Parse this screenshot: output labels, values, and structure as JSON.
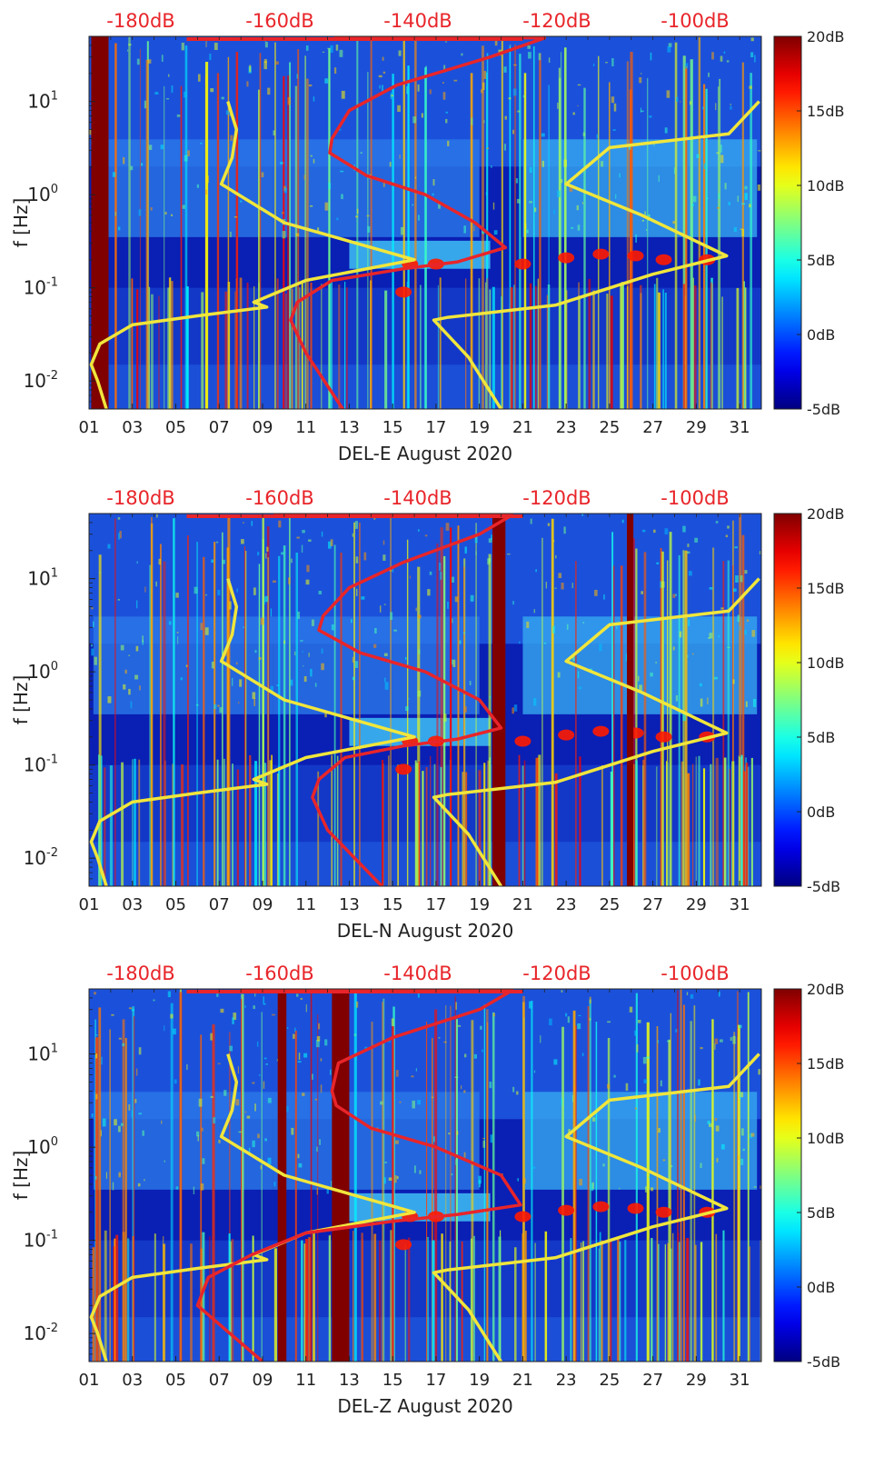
{
  "chart_data": [
    {
      "type": "heatmap",
      "xlabel": "DEL-E August 2020",
      "ylabel": "f [Hz]",
      "x_ticks": [
        "01",
        "03",
        "05",
        "07",
        "09",
        "11",
        "13",
        "15",
        "17",
        "19",
        "21",
        "23",
        "25",
        "27",
        "29",
        "31"
      ],
      "x_range_day": [
        1,
        32
      ],
      "y_scale": "log",
      "y_range_hz": [
        0.005,
        50
      ],
      "y_ticks": [
        {
          "base": "10",
          "exp": "1",
          "value": 10
        },
        {
          "base": "10",
          "exp": "0",
          "value": 1
        },
        {
          "base": "10",
          "exp": "-1",
          "value": 0.1
        },
        {
          "base": "10",
          "exp": "-2",
          "value": 0.01
        }
      ],
      "top_axis_ticks": [
        "-180dB",
        "-160dB",
        "-140dB",
        "-120dB",
        "-100dB"
      ],
      "colorbar": {
        "ticks": [
          "20dB",
          "15dB",
          "10dB",
          "5dB",
          "0dB",
          "-5dB"
        ],
        "range_db": [
          -5,
          20
        ],
        "colormap": "jet"
      },
      "saturated_bands_day": [
        [
          1.1,
          1.9
        ]
      ],
      "series": [
        {
          "color": "#f0e63c",
          "points": [
            [
              7.4,
              10
            ],
            [
              7.8,
              5
            ],
            [
              7.6,
              2.5
            ],
            [
              7.1,
              1.3
            ],
            [
              10,
              0.5
            ],
            [
              16,
              0.2
            ],
            [
              11,
              0.12
            ],
            [
              8.6,
              0.07
            ],
            [
              9.2,
              0.062
            ],
            [
              6,
              0.05
            ],
            [
              3,
              0.04
            ],
            [
              1.5,
              0.025
            ],
            [
              1.1,
              0.015
            ],
            [
              1.4,
              0.01
            ],
            [
              1.8,
              0.005
            ]
          ]
        },
        {
          "color": "#f0e63c",
          "points": [
            [
              31.9,
              10
            ],
            [
              30.5,
              4.5
            ],
            [
              25,
              3.2
            ],
            [
              23,
              1.3
            ],
            [
              26.5,
              0.6
            ],
            [
              30.4,
              0.22
            ],
            [
              27,
              0.14
            ],
            [
              22.5,
              0.065
            ],
            [
              17.5,
              0.048
            ],
            [
              16.9,
              0.045
            ],
            [
              18.5,
              0.018
            ],
            [
              20,
              0.005
            ]
          ]
        },
        {
          "color": "#e8252a",
          "points": [
            [
              12.3,
              50
            ],
            [
              22,
              48
            ],
            [
              19.5,
              30
            ],
            [
              15.2,
              15
            ],
            [
              13,
              8
            ],
            [
              12.2,
              4
            ],
            [
              12.1,
              2.8
            ],
            [
              13.8,
              1.6
            ],
            [
              16.5,
              1
            ],
            [
              18.8,
              0.5
            ],
            [
              20.2,
              0.27
            ],
            [
              18,
              0.19
            ],
            [
              15.5,
              0.16
            ],
            [
              12.2,
              0.12
            ],
            [
              10.6,
              0.07
            ],
            [
              10.3,
              0.045
            ],
            [
              11,
              0.02
            ],
            [
              12.7,
              0.005
            ]
          ]
        }
      ]
    },
    {
      "type": "heatmap",
      "xlabel": "DEL-N August 2020",
      "ylabel": "f [Hz]",
      "x_ticks": [
        "01",
        "03",
        "05",
        "07",
        "09",
        "11",
        "13",
        "15",
        "17",
        "19",
        "21",
        "23",
        "25",
        "27",
        "29",
        "31"
      ],
      "x_range_day": [
        1,
        32
      ],
      "y_scale": "log",
      "y_range_hz": [
        0.005,
        50
      ],
      "y_ticks": [
        {
          "base": "10",
          "exp": "1",
          "value": 10
        },
        {
          "base": "10",
          "exp": "0",
          "value": 1
        },
        {
          "base": "10",
          "exp": "-1",
          "value": 0.1
        },
        {
          "base": "10",
          "exp": "-2",
          "value": 0.01
        }
      ],
      "top_axis_ticks": [
        "-180dB",
        "-160dB",
        "-140dB",
        "-120dB",
        "-100dB"
      ],
      "colorbar": {
        "ticks": [
          "20dB",
          "15dB",
          "10dB",
          "5dB",
          "0dB",
          "-5dB"
        ],
        "range_db": [
          -5,
          20
        ],
        "colormap": "jet"
      },
      "saturated_bands_day": [
        [
          19.6,
          20.2
        ],
        [
          25.8,
          26.1
        ]
      ],
      "series": [
        {
          "color": "#f0e63c",
          "points": [
            [
              7.4,
              10
            ],
            [
              7.8,
              5
            ],
            [
              7.6,
              2.5
            ],
            [
              7.1,
              1.3
            ],
            [
              10,
              0.5
            ],
            [
              16,
              0.2
            ],
            [
              11,
              0.12
            ],
            [
              8.6,
              0.07
            ],
            [
              9.2,
              0.062
            ],
            [
              6,
              0.05
            ],
            [
              3,
              0.04
            ],
            [
              1.5,
              0.025
            ],
            [
              1.1,
              0.015
            ],
            [
              1.4,
              0.01
            ],
            [
              1.8,
              0.005
            ]
          ]
        },
        {
          "color": "#f0e63c",
          "points": [
            [
              31.9,
              10
            ],
            [
              30.5,
              4.5
            ],
            [
              25,
              3.2
            ],
            [
              23,
              1.3
            ],
            [
              26.5,
              0.6
            ],
            [
              30.4,
              0.22
            ],
            [
              27,
              0.14
            ],
            [
              22.5,
              0.065
            ],
            [
              17.5,
              0.048
            ],
            [
              16.9,
              0.045
            ],
            [
              18.5,
              0.018
            ],
            [
              20,
              0.005
            ]
          ]
        },
        {
          "color": "#e8252a",
          "points": [
            [
              9.5,
              50
            ],
            [
              20.5,
              48
            ],
            [
              19,
              30
            ],
            [
              15.5,
              15
            ],
            [
              13,
              8
            ],
            [
              11.8,
              4
            ],
            [
              11.6,
              2.8
            ],
            [
              13.5,
              1.6
            ],
            [
              16.5,
              1
            ],
            [
              19,
              0.5
            ],
            [
              20,
              0.25
            ],
            [
              18,
              0.19
            ],
            [
              15.5,
              0.16
            ],
            [
              12.8,
              0.12
            ],
            [
              11.6,
              0.07
            ],
            [
              11.3,
              0.045
            ],
            [
              12,
              0.02
            ],
            [
              14.5,
              0.005
            ]
          ]
        }
      ]
    },
    {
      "type": "heatmap",
      "xlabel": "DEL-Z August 2020",
      "ylabel": "f [Hz]",
      "x_ticks": [
        "01",
        "03",
        "05",
        "07",
        "09",
        "11",
        "13",
        "15",
        "17",
        "19",
        "21",
        "23",
        "25",
        "27",
        "29",
        "31"
      ],
      "x_range_day": [
        1,
        32
      ],
      "y_scale": "log",
      "y_range_hz": [
        0.005,
        50
      ],
      "y_ticks": [
        {
          "base": "10",
          "exp": "1",
          "value": 10
        },
        {
          "base": "10",
          "exp": "0",
          "value": 1
        },
        {
          "base": "10",
          "exp": "-1",
          "value": 0.1
        },
        {
          "base": "10",
          "exp": "-2",
          "value": 0.01
        }
      ],
      "top_axis_ticks": [
        "-180dB",
        "-160dB",
        "-140dB",
        "-120dB",
        "-100dB"
      ],
      "colorbar": {
        "ticks": [
          "20dB",
          "15dB",
          "10dB",
          "5dB",
          "0dB",
          "-5dB"
        ],
        "range_db": [
          -5,
          20
        ],
        "colormap": "jet"
      },
      "saturated_bands_day": [
        [
          9.7,
          10.1
        ],
        [
          12.2,
          13.0
        ]
      ],
      "series": [
        {
          "color": "#f0e63c",
          "points": [
            [
              7.4,
              10
            ],
            [
              7.8,
              5
            ],
            [
              7.6,
              2.5
            ],
            [
              7.1,
              1.3
            ],
            [
              10,
              0.5
            ],
            [
              16,
              0.2
            ],
            [
              11,
              0.12
            ],
            [
              8.6,
              0.07
            ],
            [
              9.2,
              0.062
            ],
            [
              6,
              0.05
            ],
            [
              3,
              0.04
            ],
            [
              1.5,
              0.025
            ],
            [
              1.1,
              0.015
            ],
            [
              1.4,
              0.01
            ],
            [
              1.8,
              0.005
            ]
          ]
        },
        {
          "color": "#f0e63c",
          "points": [
            [
              31.9,
              10
            ],
            [
              30.5,
              4.5
            ],
            [
              25,
              3.2
            ],
            [
              23,
              1.3
            ],
            [
              26.5,
              0.6
            ],
            [
              30.4,
              0.22
            ],
            [
              27,
              0.14
            ],
            [
              22.5,
              0.065
            ],
            [
              17.5,
              0.048
            ],
            [
              16.9,
              0.045
            ],
            [
              18.5,
              0.018
            ],
            [
              20,
              0.005
            ]
          ]
        },
        {
          "color": "#e8252a",
          "points": [
            [
              8,
              50
            ],
            [
              20.5,
              48
            ],
            [
              19,
              30
            ],
            [
              15,
              15
            ],
            [
              12.5,
              8
            ],
            [
              12.2,
              4
            ],
            [
              12.4,
              2.8
            ],
            [
              14,
              1.6
            ],
            [
              17,
              1
            ],
            [
              20,
              0.5
            ],
            [
              20.9,
              0.24
            ],
            [
              18,
              0.19
            ],
            [
              15,
              0.16
            ],
            [
              11,
              0.12
            ],
            [
              8.5,
              0.07
            ],
            [
              6.5,
              0.04
            ],
            [
              6,
              0.02
            ],
            [
              9,
              0.005
            ]
          ]
        }
      ]
    }
  ]
}
